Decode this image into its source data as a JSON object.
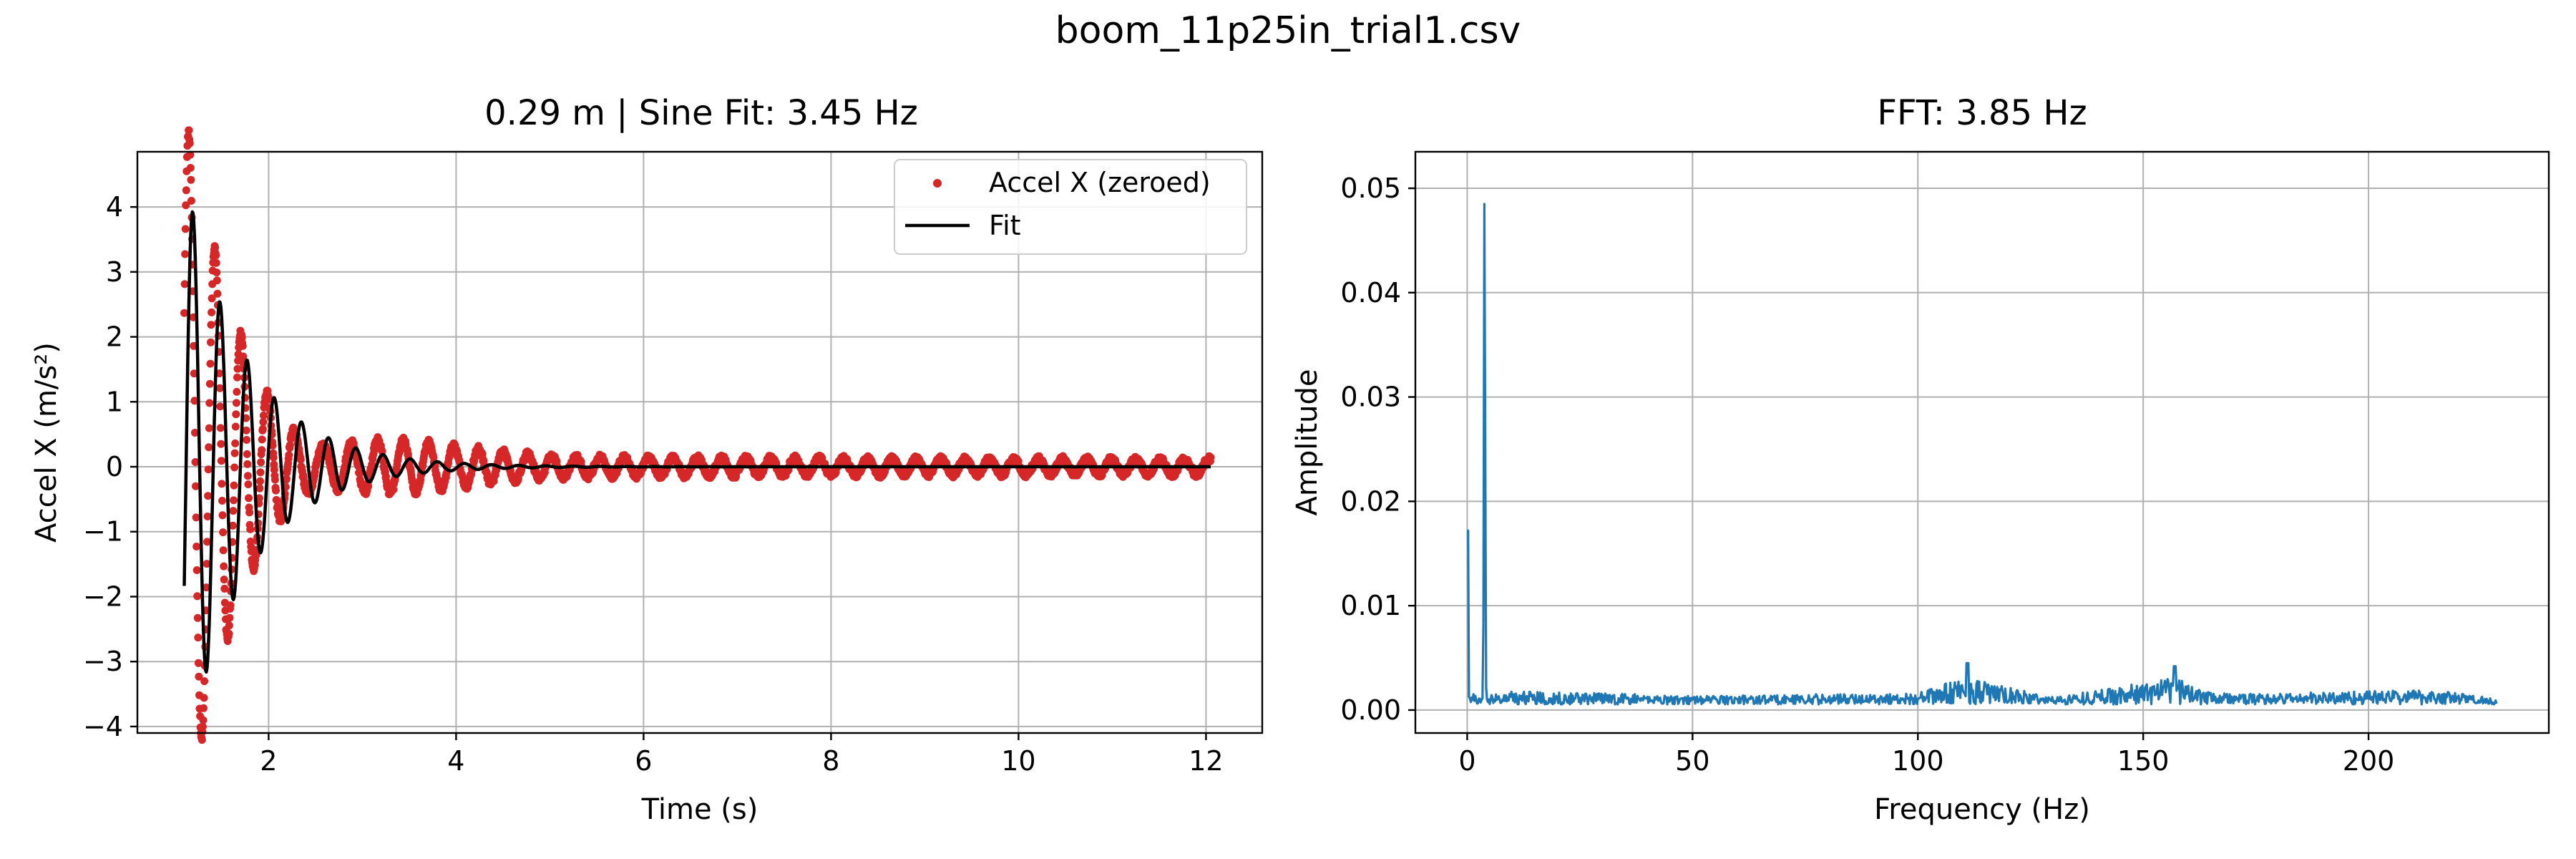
{
  "figure_title": "boom_11p25in_trial1.csv",
  "chart_data": [
    {
      "type": "scatter",
      "title": "0.29 m | Sine Fit: 3.45 Hz",
      "xlabel": "Time (s)",
      "ylabel": "Accel X (m/s²)",
      "xlim": [
        0.6,
        12.6
      ],
      "ylim": [
        -4.1,
        4.85
      ],
      "xticks": [
        2,
        4,
        6,
        8,
        10,
        12
      ],
      "yticks": [
        -4,
        -3,
        -2,
        -1,
        0,
        1,
        2,
        3,
        4
      ],
      "grid": true,
      "legend_position": "upper right",
      "series": [
        {
          "name": "Accel X (zeroed)",
          "kind": "scatter",
          "color": "#d62728",
          "x_range": [
            1.1,
            12.05
          ],
          "envelope_description": "decaying oscillation",
          "sample_points": [
            {
              "x": 1.1,
              "y": 1.7
            },
            {
              "x": 1.18,
              "y": 4.45
            },
            {
              "x": 1.25,
              "y": -1.5
            },
            {
              "x": 1.33,
              "y": -3.7
            },
            {
              "x": 1.47,
              "y": 2.7
            },
            {
              "x": 1.62,
              "y": -2.1
            },
            {
              "x": 1.75,
              "y": 1.5
            },
            {
              "x": 1.9,
              "y": -1.3
            },
            {
              "x": 2.05,
              "y": 0.95
            },
            {
              "x": 2.2,
              "y": -0.8
            },
            {
              "x": 3.0,
              "y": 0.55
            },
            {
              "x": 4.0,
              "y": 0.3
            },
            {
              "x": 6.0,
              "y": 0.3
            },
            {
              "x": 8.5,
              "y": 0.25
            },
            {
              "x": 12.0,
              "y": 0.15
            }
          ]
        },
        {
          "name": "Fit",
          "kind": "line",
          "color": "#000000",
          "model": "damped sine",
          "frequency_hz": 3.45,
          "amplitude": 4.5,
          "decay_per_s": 1.5,
          "t0": 1.1,
          "phase_rad": -0.42,
          "x_range": [
            1.1,
            12.05
          ]
        }
      ]
    },
    {
      "type": "line",
      "title": "FFT: 3.85 Hz",
      "xlabel": "Frequency (Hz)",
      "ylabel": "Amplitude",
      "xlim": [
        -11.5,
        240
      ],
      "ylim": [
        -0.0022,
        0.0535
      ],
      "xticks": [
        0,
        50,
        100,
        150,
        200
      ],
      "yticks": [
        0.0,
        0.01,
        0.02,
        0.03,
        0.04,
        0.05
      ],
      "ytick_labels": [
        "0.00",
        "0.01",
        "0.02",
        "0.03",
        "0.04",
        "0.05"
      ],
      "grid": true,
      "series": [
        {
          "kind": "line",
          "color": "#1f77b4",
          "x_range": [
            0,
            228.5
          ],
          "points": [
            {
              "x": 0.0,
              "y": 0.0172
            },
            {
              "x": 0.6,
              "y": 0.0008
            },
            {
              "x": 3.85,
              "y": 0.0513
            },
            {
              "x": 5.0,
              "y": 0.0012
            },
            {
              "x": 8.0,
              "y": 0.0022
            },
            {
              "x": 50.0,
              "y": 0.0014
            },
            {
              "x": 100.0,
              "y": 0.0018
            },
            {
              "x": 111.0,
              "y": 0.0045
            },
            {
              "x": 118.0,
              "y": 0.003
            },
            {
              "x": 130.0,
              "y": 0.0012
            },
            {
              "x": 157.0,
              "y": 0.0042
            },
            {
              "x": 170.0,
              "y": 0.0016
            },
            {
              "x": 214.0,
              "y": 0.0024
            },
            {
              "x": 228.5,
              "y": 0.001
            }
          ],
          "noise_floor": 0.0009
        }
      ]
    }
  ]
}
